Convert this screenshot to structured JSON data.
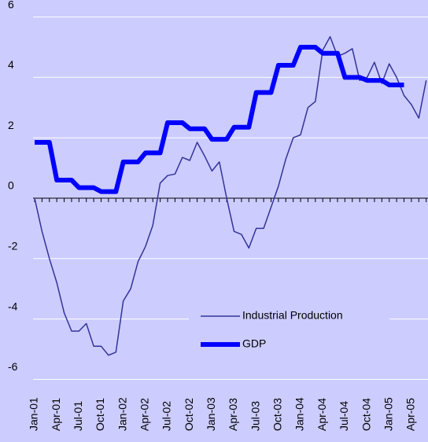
{
  "chart_data": {
    "type": "line",
    "categories": [
      "Jan-01",
      null,
      null,
      "Apr-01",
      null,
      null,
      "Jul-01",
      null,
      null,
      "Oct-01",
      null,
      null,
      "Jan-02",
      null,
      null,
      "Apr-02",
      null,
      null,
      "Jul-02",
      null,
      null,
      "Oct-02",
      null,
      null,
      "Jan-03",
      null,
      null,
      "Apr-03",
      null,
      null,
      "Jul-03",
      null,
      null,
      "Oct-03",
      null,
      null,
      "Jan-04",
      null,
      null,
      "Apr-04",
      null,
      null,
      "Jul-04",
      null,
      null,
      "Oct-04",
      null,
      null,
      "Jan-05",
      null,
      null,
      "Apr-05",
      null,
      null
    ],
    "series": [
      {
        "name": "Industrial Production",
        "color": "#333399",
        "width": 1.5,
        "values": [
          0,
          -1.1,
          -2.0,
          -2.8,
          -3.8,
          -4.4,
          -4.4,
          -4.15,
          -4.9,
          -4.9,
          -5.2,
          -5.1,
          -3.4,
          -3.0,
          -2.1,
          -1.6,
          -0.9,
          0.5,
          0.75,
          0.8,
          1.35,
          1.25,
          1.85,
          1.4,
          0.9,
          1.2,
          0.0,
          -1.1,
          -1.2,
          -1.65,
          -1.0,
          -1.0,
          -0.3,
          0.4,
          1.3,
          2.0,
          2.1,
          3.0,
          3.2,
          4.9,
          5.35,
          4.7,
          4.8,
          4.95,
          3.9,
          4.0,
          4.5,
          3.8,
          4.45,
          4.0,
          3.4,
          3.1,
          2.65,
          3.9
        ]
      },
      {
        "name": "GDP",
        "color": "#0000ff",
        "width": 6,
        "values": [
          1.85,
          1.85,
          1.85,
          0.6,
          0.6,
          0.6,
          0.35,
          0.35,
          0.35,
          0.22,
          0.22,
          0.22,
          1.2,
          1.2,
          1.2,
          1.5,
          1.5,
          1.5,
          2.5,
          2.5,
          2.5,
          2.3,
          2.3,
          2.3,
          1.95,
          1.95,
          1.95,
          2.35,
          2.35,
          2.35,
          3.5,
          3.5,
          3.5,
          4.4,
          4.4,
          4.4,
          5.0,
          5.0,
          5.0,
          4.8,
          4.8,
          4.8,
          4.0,
          4.0,
          4.0,
          3.9,
          3.9,
          3.9,
          3.75,
          3.75,
          3.75,
          null,
          null,
          null
        ]
      }
    ],
    "ylim": [
      -6,
      6
    ],
    "yticks": [
      -6,
      -4,
      -2,
      0,
      2,
      4,
      6
    ],
    "grid": true
  }
}
